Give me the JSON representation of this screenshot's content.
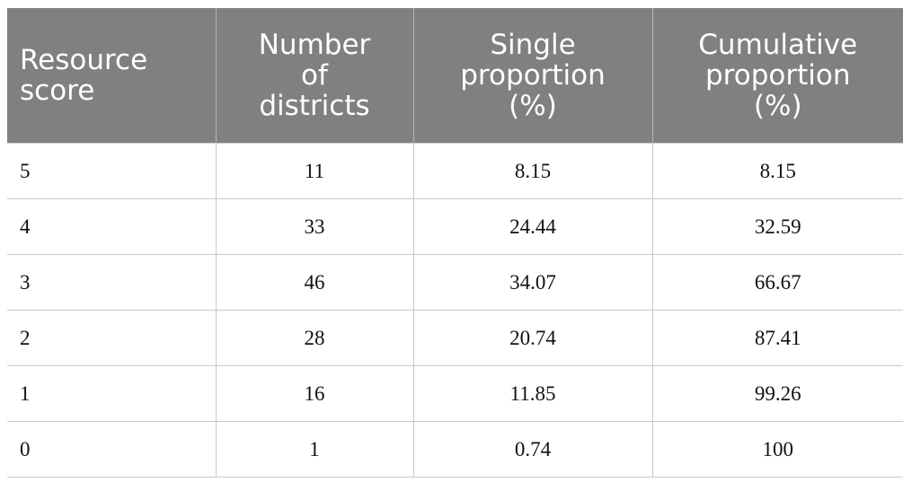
{
  "table": {
    "header": [
      "Resource score",
      "Number of districts",
      "Single proportion (%)",
      "Cumulative proportion (%)"
    ],
    "rows": [
      [
        5,
        11,
        8.15,
        8.15
      ],
      [
        4,
        33,
        24.44,
        32.59
      ],
      [
        3,
        46,
        34.07,
        66.67
      ],
      [
        2,
        28,
        20.74,
        87.41
      ],
      [
        1,
        16,
        11.85,
        99.26
      ],
      [
        0,
        1,
        0.74,
        100
      ]
    ]
  }
}
